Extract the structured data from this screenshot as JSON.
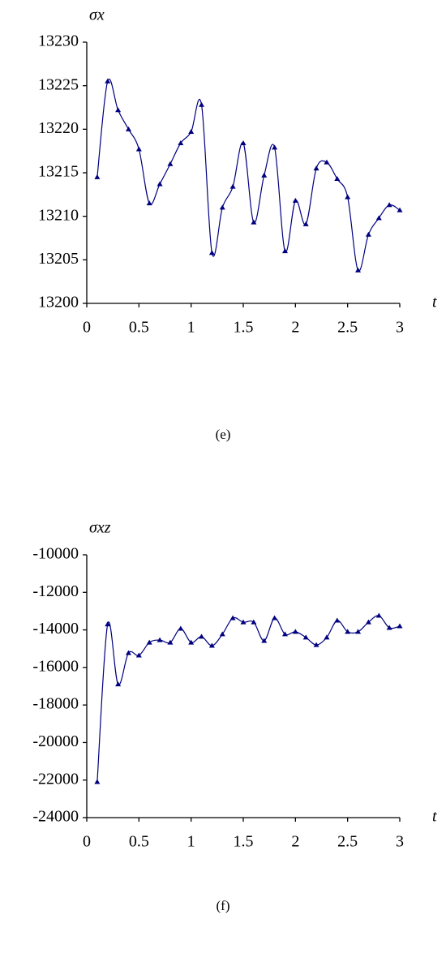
{
  "chart_data": [
    {
      "type": "line",
      "y_label": "σx",
      "x_label": "t",
      "caption": "(e)",
      "x": [
        0.1,
        0.2,
        0.3,
        0.4,
        0.5,
        0.6,
        0.7,
        0.8,
        0.9,
        1.0,
        1.1,
        1.2,
        1.3,
        1.4,
        1.5,
        1.6,
        1.7,
        1.8,
        1.9,
        2.0,
        2.1,
        2.2,
        2.3,
        2.4,
        2.5,
        2.6,
        2.7,
        2.8,
        2.9,
        3.0
      ],
      "series": [
        {
          "color": "#00007f",
          "values": [
            13214.5,
            13225.5,
            13222.2,
            13220,
            13217.7,
            13211.5,
            13213.7,
            13216,
            13218.4,
            13219.7,
            13222.8,
            13205.8,
            13211,
            13213.4,
            13218.4,
            13209.3,
            13214.7,
            13217.9,
            13206,
            13211.8,
            13209.1,
            13215.5,
            13216.2,
            13214.3,
            13212.2,
            13203.8,
            13207.9,
            13209.8,
            13211.3,
            13210.7
          ]
        }
      ],
      "xlim": [
        0,
        3
      ],
      "xticks": [
        0,
        0.5,
        1,
        1.5,
        2,
        2.5,
        3
      ],
      "ylim": [
        13200,
        13230
      ],
      "yticks": [
        13200,
        13205,
        13210,
        13215,
        13220,
        13225,
        13230
      ]
    },
    {
      "type": "line",
      "y_label": "σxz",
      "x_label": "t",
      "caption": "(f)",
      "x": [
        0.1,
        0.2,
        0.3,
        0.4,
        0.5,
        0.6,
        0.7,
        0.8,
        0.9,
        1.0,
        1.1,
        1.2,
        1.3,
        1.4,
        1.5,
        1.6,
        1.7,
        1.8,
        1.9,
        2.0,
        2.1,
        2.2,
        2.3,
        2.4,
        2.5,
        2.6,
        2.7,
        2.8,
        2.9,
        3.0
      ],
      "series": [
        {
          "color": "#00007f",
          "values": [
            -22100,
            -13700,
            -16900,
            -15230,
            -15360,
            -14670,
            -14540,
            -14670,
            -13930,
            -14670,
            -14360,
            -14840,
            -14230,
            -13370,
            -13590,
            -13590,
            -14580,
            -13370,
            -14230,
            -14100,
            -14400,
            -14800,
            -14400,
            -13500,
            -14100,
            -14100,
            -13590,
            -13240,
            -13890,
            -13800
          ]
        }
      ],
      "xlim": [
        0,
        3
      ],
      "xticks": [
        0,
        0.5,
        1,
        1.5,
        2,
        2.5,
        3
      ],
      "ylim": [
        -24000,
        -10000
      ],
      "yticks": [
        -24000,
        -22000,
        -20000,
        -18000,
        -16000,
        -14000,
        -12000,
        -10000
      ]
    }
  ]
}
